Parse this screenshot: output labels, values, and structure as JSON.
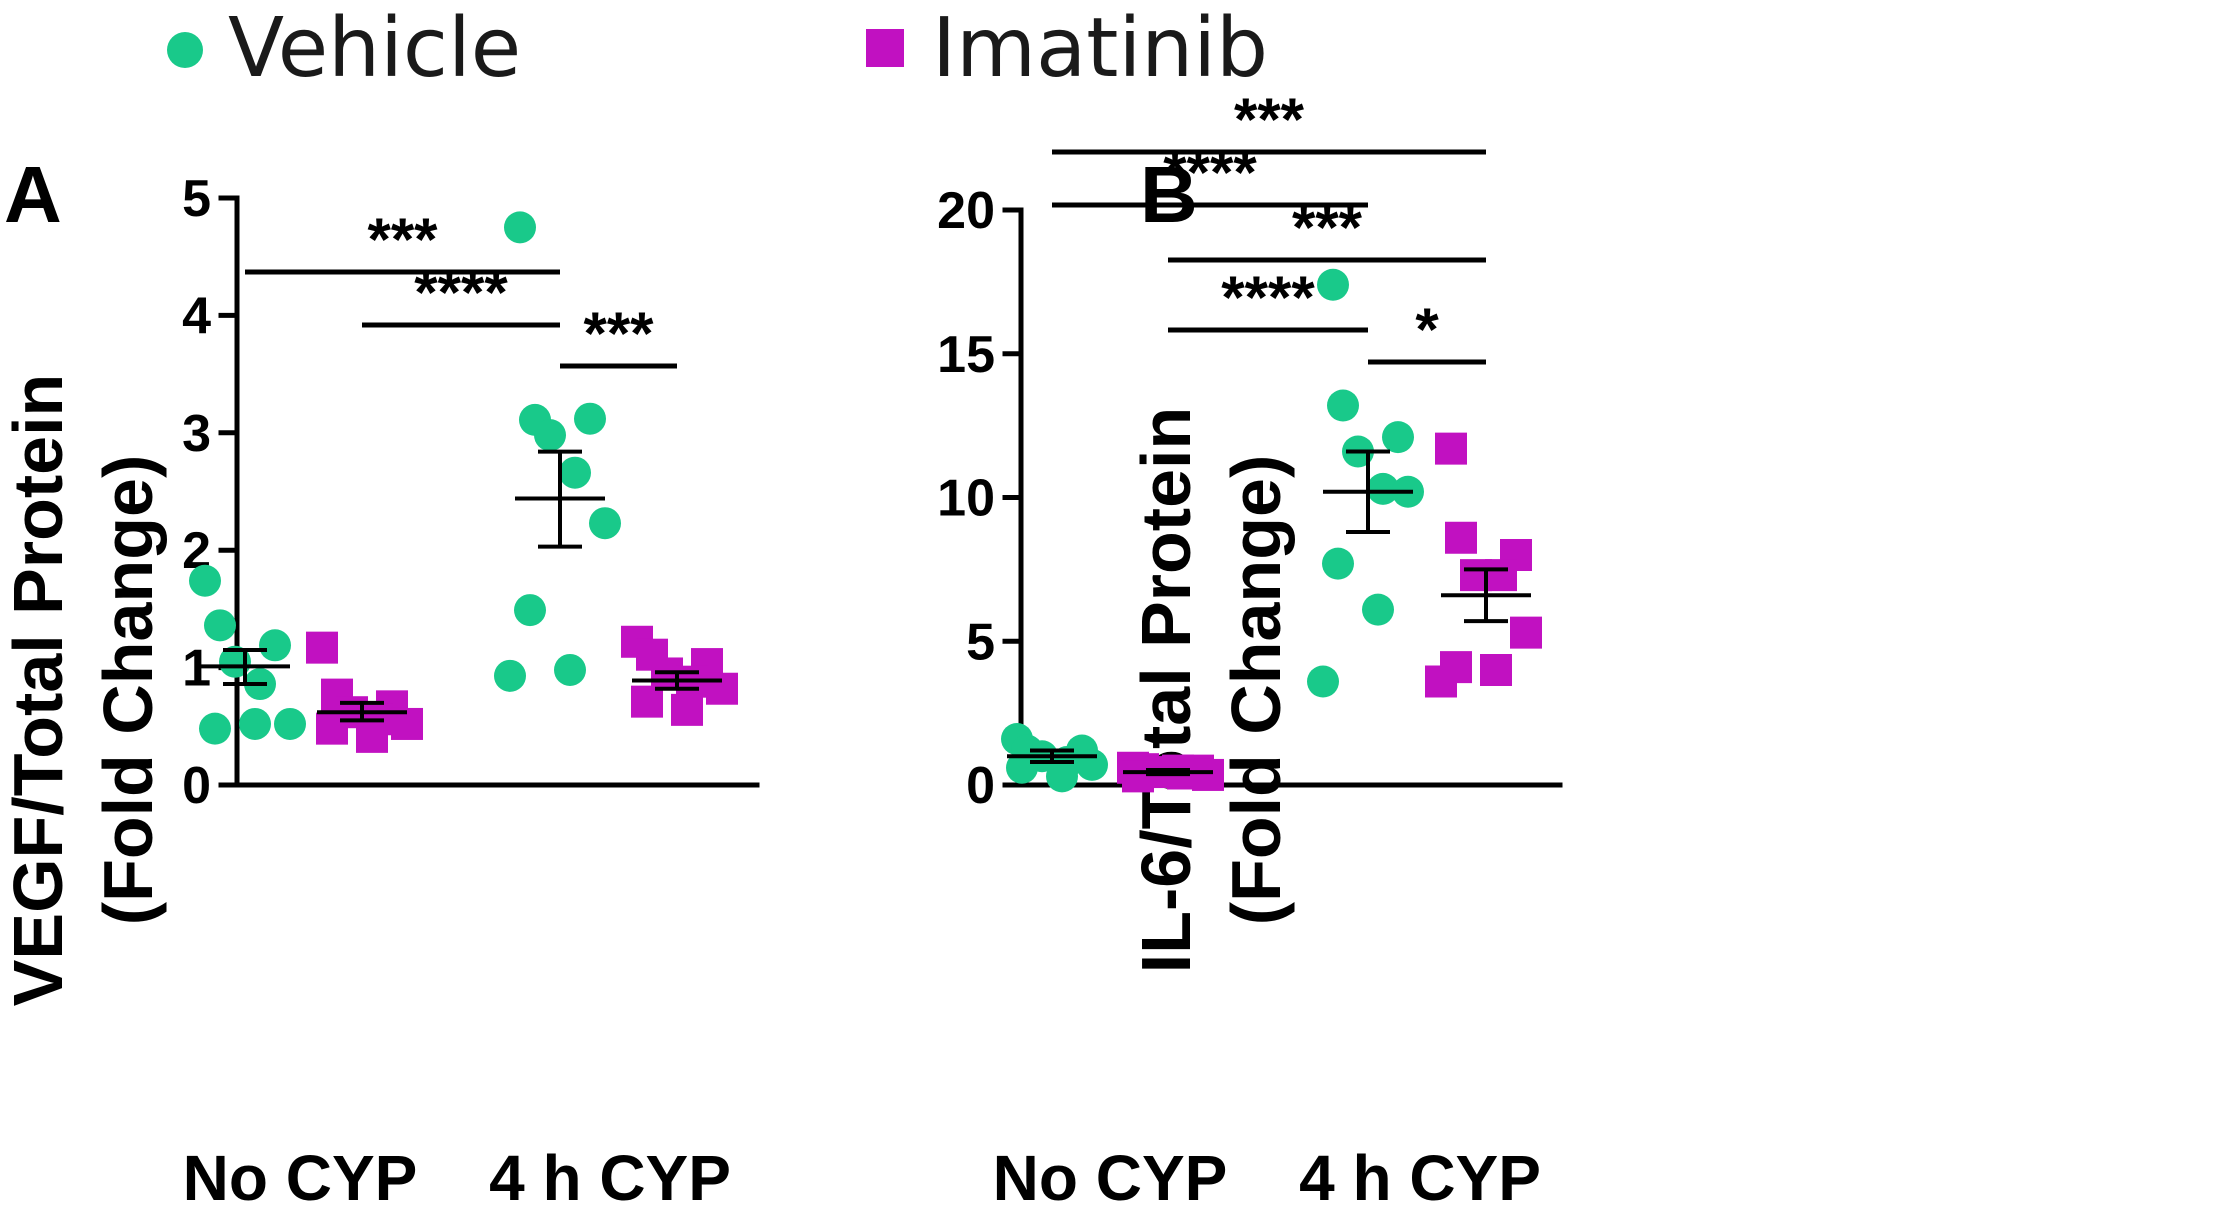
{
  "legend": {
    "vehicle": {
      "label": "Vehicle",
      "color": "#19c98a",
      "shape": "circle"
    },
    "imatinib": {
      "label": "Imatinib",
      "color": "#c111c1",
      "shape": "square"
    }
  },
  "chart_data": [
    {
      "type": "scatter",
      "panel": "A",
      "ylabel_line1": "VEGF/Total Protein",
      "ylabel_line2": "(Fold Change)",
      "ylim": [
        0,
        5
      ],
      "yticks": [
        "0",
        "1",
        "2",
        "3",
        "4",
        "5"
      ],
      "categories": [
        "No CYP",
        "4 h CYP"
      ],
      "series": [
        {
          "name": "Vehicle",
          "groups": [
            {
              "category": "No CYP",
              "mean": 1.01,
              "sem_low": 0.86,
              "sem_high": 1.15,
              "values": [
                1.74,
                1.36,
                1.19,
                1.05,
                0.86,
                0.52,
                0.48,
                0.52
              ]
            },
            {
              "category": "4 h CYP",
              "mean": 2.44,
              "sem_low": 2.03,
              "sem_high": 2.84,
              "values": [
                4.75,
                3.11,
                3.12,
                2.98,
                2.66,
                2.23,
                1.49,
                0.98,
                0.93
              ]
            }
          ]
        },
        {
          "name": "Imatinib",
          "groups": [
            {
              "category": "No CYP",
              "mean": 0.62,
              "sem_low": 0.55,
              "sem_high": 0.7,
              "values": [
                1.17,
                0.77,
                0.67,
                0.62,
                0.56,
                0.52,
                0.48,
                0.41
              ]
            },
            {
              "category": "4 h CYP",
              "mean": 0.89,
              "sem_low": 0.82,
              "sem_high": 0.96,
              "values": [
                1.22,
                1.11,
                1.03,
                0.95,
                0.88,
                0.82,
                0.71,
                0.64
              ]
            }
          ]
        }
      ],
      "significance": [
        {
          "from": "Vehicle No CYP",
          "to": "Vehicle 4 h CYP",
          "label": "***"
        },
        {
          "from": "Imatinib No CYP",
          "to": "Vehicle 4 h CYP",
          "label": "****"
        },
        {
          "from": "Vehicle 4 h CYP",
          "to": "Imatinib 4 h CYP",
          "label": "***"
        }
      ]
    },
    {
      "type": "scatter",
      "panel": "B",
      "ylabel_line1": "IL-6/Total Protein",
      "ylabel_line2": "(Fold Change)",
      "ylim": [
        0,
        20
      ],
      "yticks": [
        "0",
        "5",
        "10",
        "15",
        "20"
      ],
      "categories": [
        "No CYP",
        "4 h CYP"
      ],
      "series": [
        {
          "name": "Vehicle",
          "groups": [
            {
              "category": "No CYP",
              "mean": 1.0,
              "sem_low": 0.8,
              "sem_high": 1.2,
              "values": [
                1.6,
                1.2,
                1.2,
                1.0,
                0.8,
                0.7,
                0.6,
                0.3
              ]
            },
            {
              "category": "4 h CYP",
              "mean": 10.2,
              "sem_low": 8.8,
              "sem_high": 11.6,
              "values": [
                17.4,
                13.2,
                12.1,
                11.6,
                10.3,
                10.2,
                7.7,
                6.1,
                3.6
              ]
            }
          ]
        },
        {
          "name": "Imatinib",
          "groups": [
            {
              "category": "No CYP",
              "mean": 0.45,
              "sem_low": 0.38,
              "sem_high": 0.52,
              "values": [
                0.6,
                0.55,
                0.5,
                0.45,
                0.4,
                0.35,
                0.3,
                0.5
              ]
            },
            {
              "category": "4 h CYP",
              "mean": 6.6,
              "sem_low": 5.7,
              "sem_high": 7.5,
              "values": [
                11.7,
                8.6,
                8.0,
                7.3,
                7.3,
                5.3,
                4.1,
                4.0,
                3.6
              ]
            }
          ]
        }
      ],
      "significance": [
        {
          "from": "Vehicle No CYP",
          "to": "Imatinib 4 h CYP",
          "label": "***"
        },
        {
          "from": "Vehicle No CYP",
          "to": "Vehicle 4 h CYP",
          "label": "****"
        },
        {
          "from": "Imatinib No CYP",
          "to": "Imatinib 4 h CYP",
          "label": "***"
        },
        {
          "from": "Imatinib No CYP",
          "to": "Vehicle 4 h CYP",
          "label": "****"
        },
        {
          "from": "Vehicle 4 h CYP",
          "to": "Imatinib 4 h CYP",
          "label": "*"
        }
      ]
    }
  ]
}
